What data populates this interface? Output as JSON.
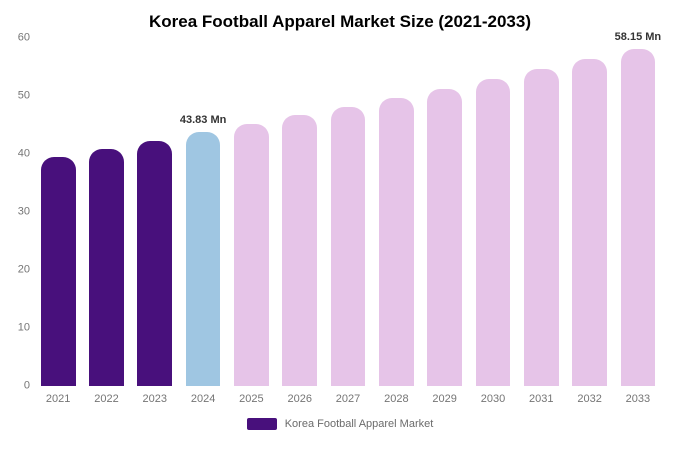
{
  "chart_data": {
    "type": "bar",
    "title": "Korea Football Apparel Market Size (2021-2033)",
    "categories": [
      "2021",
      "2022",
      "2023",
      "2024",
      "2025",
      "2026",
      "2027",
      "2028",
      "2029",
      "2030",
      "2031",
      "2032",
      "2033"
    ],
    "values": [
      39.5,
      40.8,
      42.2,
      43.83,
      45.23,
      46.67,
      48.16,
      49.7,
      51.28,
      52.92,
      54.61,
      56.35,
      58.15
    ],
    "unit": "Mn",
    "ylim": [
      0,
      60
    ],
    "yticks": [
      0,
      10,
      20,
      30,
      40,
      50,
      60
    ],
    "grid": false,
    "xlabel": "",
    "ylabel": "",
    "annotations": [
      {
        "category": "2024",
        "text": "43.83 Mn"
      },
      {
        "category": "2033",
        "text": "58.15 Mn"
      }
    ],
    "bar_colors": [
      "#48107C",
      "#48107C",
      "#48107C",
      "#9FC6E2",
      "#E6C4E8",
      "#E6C4E8",
      "#E6C4E8",
      "#E6C4E8",
      "#E6C4E8",
      "#E6C4E8",
      "#E6C4E8",
      "#E6C4E8",
      "#E6C4E8"
    ],
    "colors": {
      "historical": "#48107C",
      "current_year": "#9FC6E2",
      "forecast": "#E6C4E8",
      "axis_text": "#757575",
      "annotation_text": "#333333"
    },
    "legend": {
      "label": "Korea Football Apparel Market",
      "swatch_color": "#48107C",
      "position": "bottom"
    }
  }
}
